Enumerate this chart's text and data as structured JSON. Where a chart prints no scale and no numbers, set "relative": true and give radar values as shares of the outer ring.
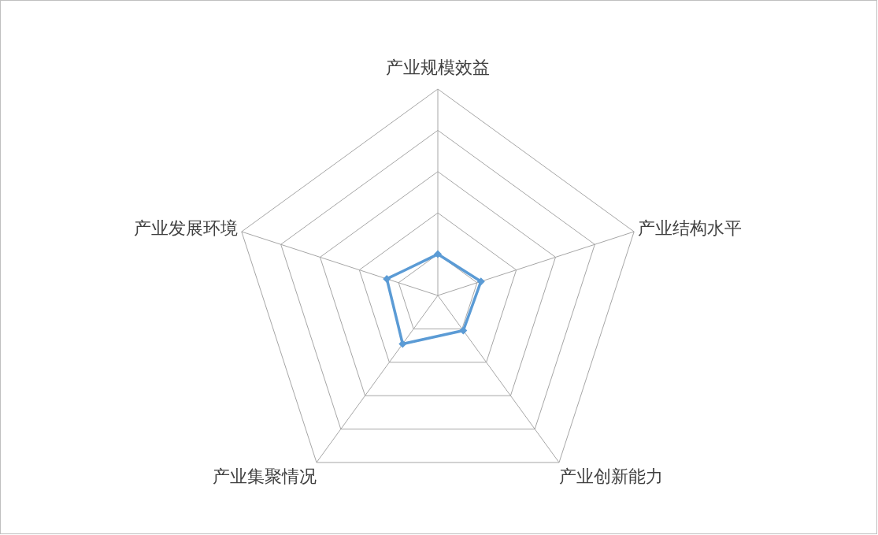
{
  "chart_data": {
    "type": "radar",
    "relative": true,
    "grid": true,
    "marker": "diamond",
    "categories": [
      "产业规模效益",
      "产业结构水平",
      "产业创新能力",
      "产业集聚情况",
      "产业发展环境"
    ],
    "series": [
      {
        "color": "#5b9bd5",
        "values": [
          0.2,
          0.22,
          0.21,
          0.29,
          0.26
        ]
      }
    ]
  }
}
